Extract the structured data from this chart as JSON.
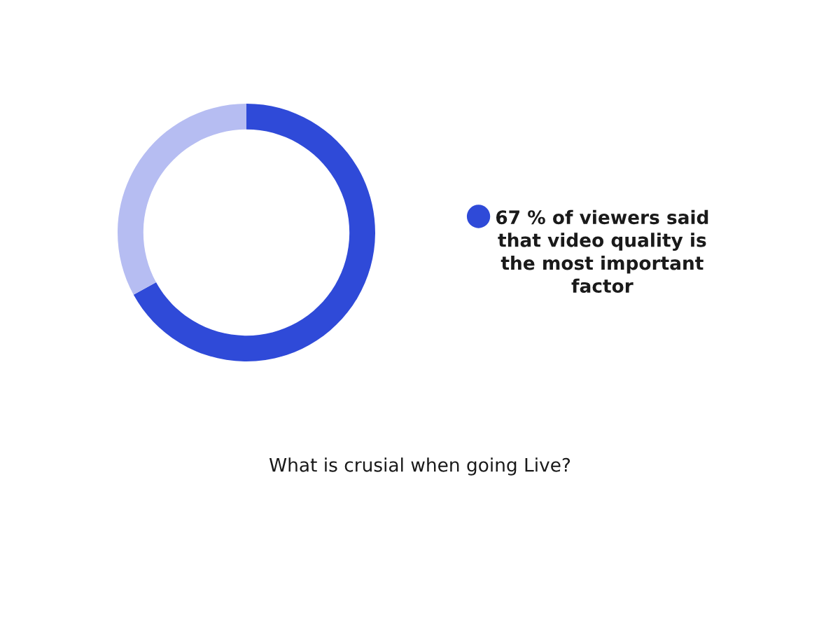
{
  "chart_data": {
    "type": "donut",
    "title": "What is crusial when going Live?",
    "categories": [
      "67 % of viewers said\nthat video quality is\nthe most important\nfactor",
      null
    ],
    "values": [
      67,
      33
    ],
    "colors": [
      "#2f4ad8",
      "#b6bdf2"
    ],
    "legend": "right",
    "marker": "circle"
  }
}
